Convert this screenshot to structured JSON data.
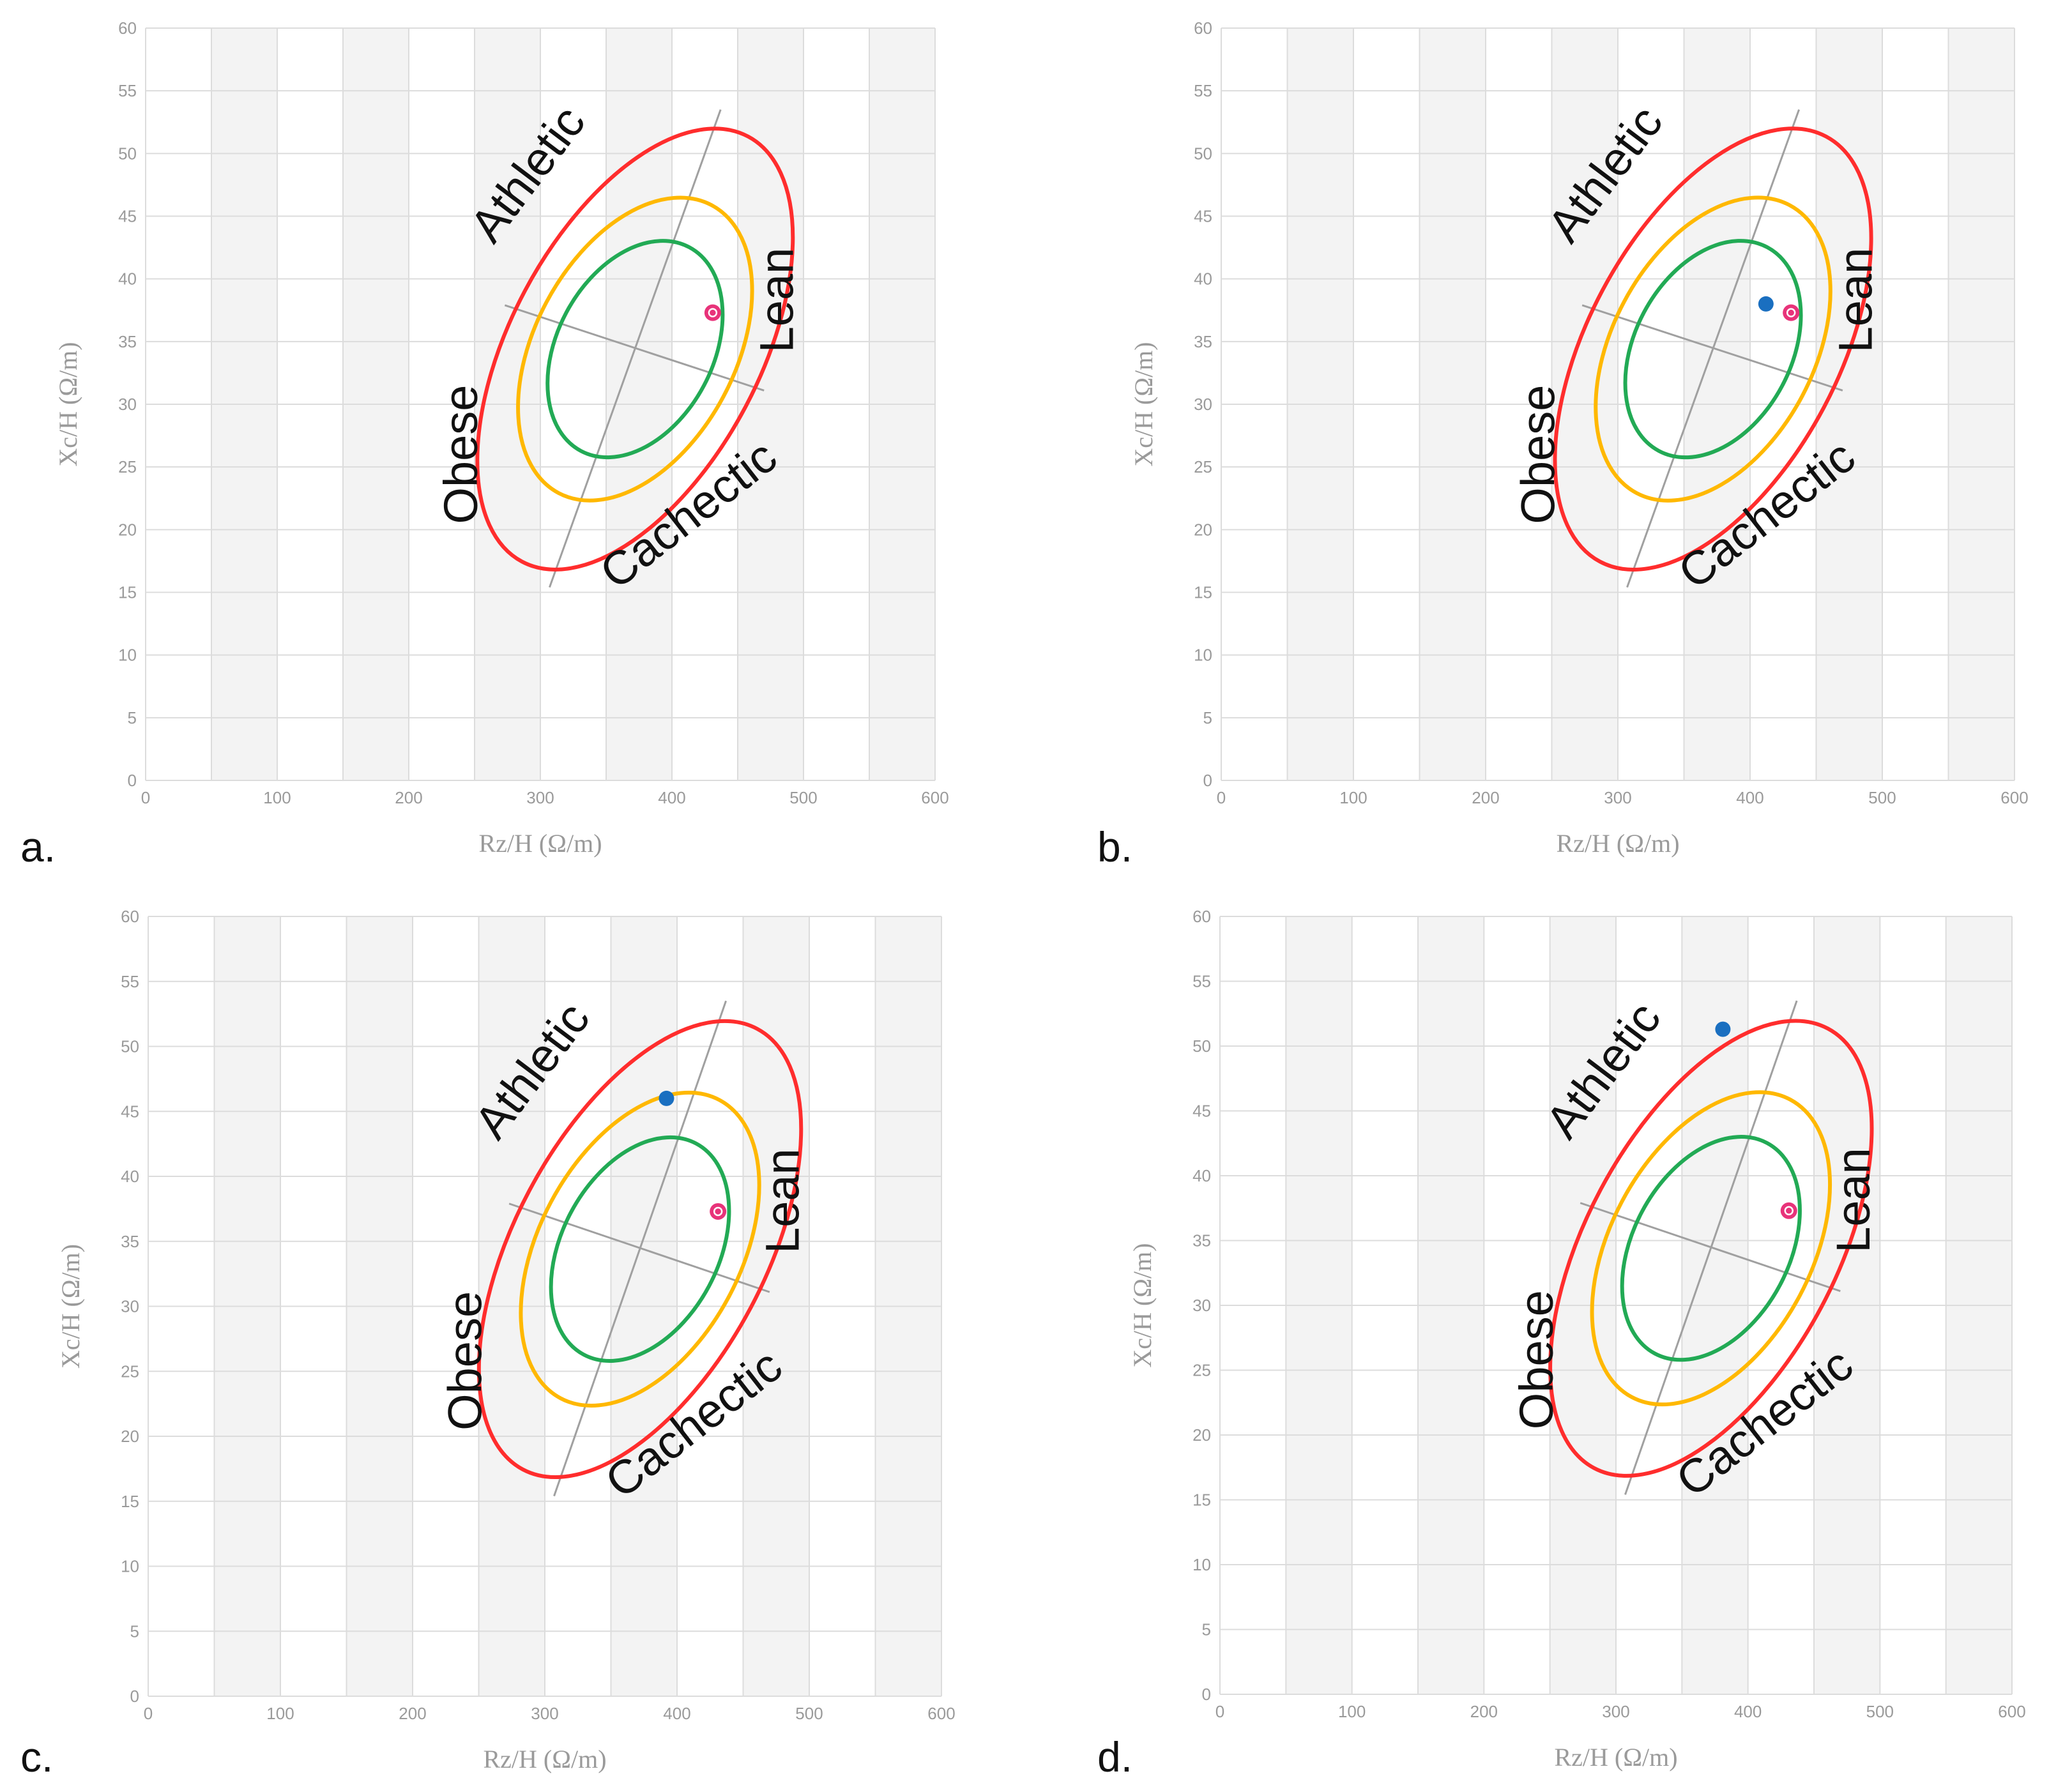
{
  "chart_data": [
    {
      "panel": "a.",
      "type": "scatter",
      "xlabel": "Rz/H (Ω/m)",
      "ylabel": "Xc/H (Ω/m)",
      "xlim": [
        0,
        600
      ],
      "ylim": [
        0,
        60
      ],
      "x_ticks": [
        0,
        100,
        200,
        300,
        400,
        500,
        600
      ],
      "y_ticks": [
        0,
        5,
        10,
        15,
        20,
        25,
        30,
        35,
        40,
        45,
        50,
        55,
        60
      ],
      "grid": true,
      "shaded_bands": [
        [
          50,
          100
        ],
        [
          150,
          200
        ],
        [
          250,
          300
        ],
        [
          350,
          400
        ],
        [
          450,
          500
        ],
        [
          550,
          600
        ]
      ],
      "tolerance_ellipses": [
        {
          "color": "#22aa55",
          "center": [
            372,
            34.4
          ],
          "x_radius": 80,
          "y_radius": 9.2
        },
        {
          "color": "#ffb800",
          "center": [
            372,
            34.4
          ],
          "x_radius": 103,
          "y_radius": 13.0
        },
        {
          "color": "#ff2d2d",
          "center": [
            372,
            34.4
          ],
          "x_radius": 128,
          "y_radius": 19.2
        }
      ],
      "axis_lines": [
        {
          "from": [
            307,
            15.4
          ],
          "to": [
            437,
            53.5
          ]
        },
        {
          "from": [
            273,
            37.9
          ],
          "to": [
            470,
            31.1
          ]
        }
      ],
      "region_labels": [
        "Athletic",
        "Lean",
        "Obese",
        "Cachectic"
      ],
      "reference_point": {
        "x": 431,
        "y": 37.3,
        "color": "#e8337a"
      },
      "subject_points": []
    },
    {
      "panel": "b.",
      "type": "scatter",
      "xlabel": "Rz/H (Ω/m)",
      "ylabel": "Xc/H (Ω/m)",
      "xlim": [
        0,
        600
      ],
      "ylim": [
        0,
        60
      ],
      "x_ticks": [
        0,
        100,
        200,
        300,
        400,
        500,
        600
      ],
      "y_ticks": [
        0,
        5,
        10,
        15,
        20,
        25,
        30,
        35,
        40,
        45,
        50,
        55,
        60
      ],
      "grid": true,
      "shaded_bands": [
        [
          50,
          100
        ],
        [
          150,
          200
        ],
        [
          250,
          300
        ],
        [
          350,
          400
        ],
        [
          450,
          500
        ],
        [
          550,
          600
        ]
      ],
      "tolerance_ellipses": [
        {
          "color": "#22aa55",
          "center": [
            372,
            34.4
          ],
          "x_radius": 80,
          "y_radius": 9.2
        },
        {
          "color": "#ffb800",
          "center": [
            372,
            34.4
          ],
          "x_radius": 103,
          "y_radius": 13.0
        },
        {
          "color": "#ff2d2d",
          "center": [
            372,
            34.4
          ],
          "x_radius": 128,
          "y_radius": 19.2
        }
      ],
      "axis_lines": [
        {
          "from": [
            307,
            15.4
          ],
          "to": [
            437,
            53.5
          ]
        },
        {
          "from": [
            273,
            37.9
          ],
          "to": [
            470,
            31.1
          ]
        }
      ],
      "region_labels": [
        "Athletic",
        "Lean",
        "Obese",
        "Cachectic"
      ],
      "reference_point": {
        "x": 431,
        "y": 37.3,
        "color": "#e8337a"
      },
      "subject_points": [
        {
          "x": 412,
          "y": 38.0,
          "color": "#1a6fc0"
        }
      ]
    },
    {
      "panel": "c.",
      "type": "scatter",
      "xlabel": "Rz/H (Ω/m)",
      "ylabel": "Xc/H (Ω/m)",
      "xlim": [
        0,
        600
      ],
      "ylim": [
        0,
        60
      ],
      "x_ticks": [
        0,
        100,
        200,
        300,
        400,
        500,
        600
      ],
      "y_ticks": [
        0,
        5,
        10,
        15,
        20,
        25,
        30,
        35,
        40,
        45,
        50,
        55,
        60
      ],
      "grid": true,
      "shaded_bands": [
        [
          50,
          100
        ],
        [
          150,
          200
        ],
        [
          250,
          300
        ],
        [
          350,
          400
        ],
        [
          450,
          500
        ],
        [
          550,
          600
        ]
      ],
      "tolerance_ellipses": [
        {
          "color": "#22aa55",
          "center": [
            372,
            34.4
          ],
          "x_radius": 80,
          "y_radius": 9.2
        },
        {
          "color": "#ffb800",
          "center": [
            372,
            34.4
          ],
          "x_radius": 103,
          "y_radius": 13.0
        },
        {
          "color": "#ff2d2d",
          "center": [
            372,
            34.4
          ],
          "x_radius": 128,
          "y_radius": 19.2
        }
      ],
      "axis_lines": [
        {
          "from": [
            307,
            15.4
          ],
          "to": [
            437,
            53.5
          ]
        },
        {
          "from": [
            273,
            37.9
          ],
          "to": [
            470,
            31.1
          ]
        }
      ],
      "region_labels": [
        "Athletic",
        "Lean",
        "Obese",
        "Cachectic"
      ],
      "reference_point": {
        "x": 431,
        "y": 37.3,
        "color": "#e8337a"
      },
      "subject_points": [
        {
          "x": 392,
          "y": 46.0,
          "color": "#1a6fc0"
        }
      ]
    },
    {
      "panel": "d.",
      "type": "scatter",
      "xlabel": "Rz/H (Ω/m)",
      "ylabel": "Xc/H (Ω/m)",
      "xlim": [
        0,
        600
      ],
      "ylim": [
        0,
        60
      ],
      "x_ticks": [
        0,
        100,
        200,
        300,
        400,
        500,
        600
      ],
      "y_ticks": [
        0,
        5,
        10,
        15,
        20,
        25,
        30,
        35,
        40,
        45,
        50,
        55,
        60
      ],
      "grid": true,
      "shaded_bands": [
        [
          50,
          100
        ],
        [
          150,
          200
        ],
        [
          250,
          300
        ],
        [
          350,
          400
        ],
        [
          450,
          500
        ],
        [
          550,
          600
        ]
      ],
      "tolerance_ellipses": [
        {
          "color": "#22aa55",
          "center": [
            372,
            34.4
          ],
          "x_radius": 80,
          "y_radius": 9.2
        },
        {
          "color": "#ffb800",
          "center": [
            372,
            34.4
          ],
          "x_radius": 103,
          "y_radius": 13.0
        },
        {
          "color": "#ff2d2d",
          "center": [
            372,
            34.4
          ],
          "x_radius": 128,
          "y_radius": 19.2
        }
      ],
      "axis_lines": [
        {
          "from": [
            307,
            15.4
          ],
          "to": [
            437,
            53.5
          ]
        },
        {
          "from": [
            273,
            37.9
          ],
          "to": [
            470,
            31.1
          ]
        }
      ],
      "region_labels": [
        "Athletic",
        "Lean",
        "Obese",
        "Cachectic"
      ],
      "reference_point": {
        "x": 431,
        "y": 37.3,
        "color": "#e8337a"
      },
      "subject_points": [
        {
          "x": 381,
          "y": 51.3,
          "color": "#1a6fc0"
        }
      ]
    }
  ]
}
